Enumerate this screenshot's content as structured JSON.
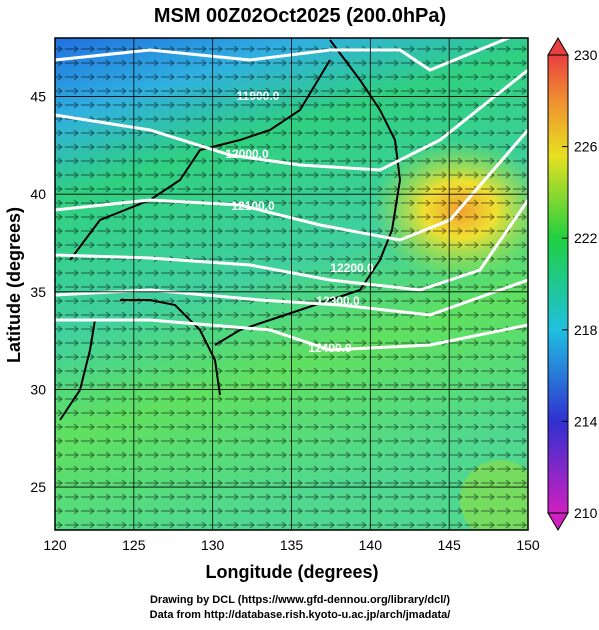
{
  "title": "MSM 00Z02Oct2025 (200.0hPa)",
  "x_axis": {
    "label": "Longitude (degrees)",
    "range": [
      120,
      150
    ],
    "ticks": [
      120,
      125,
      130,
      135,
      140,
      145,
      150
    ]
  },
  "y_axis": {
    "label": "Latitude  (degrees)",
    "range": [
      22.8,
      48
    ],
    "ticks": [
      25,
      30,
      35,
      40,
      45
    ]
  },
  "colorbar": {
    "range": [
      210,
      230
    ],
    "ticks": [
      210,
      214,
      218,
      222,
      226,
      230
    ]
  },
  "contours": [
    "11900.0",
    "12000.0",
    "12100.0",
    "12200.0",
    "12300.0",
    "12400.0"
  ],
  "credits": [
    "Drawing by DCL (https://www.gfd-dennou.org/library/dcl/)",
    "Data from http://database.rish.kyoto-u.ac.jp/arch/jmadata/"
  ]
}
